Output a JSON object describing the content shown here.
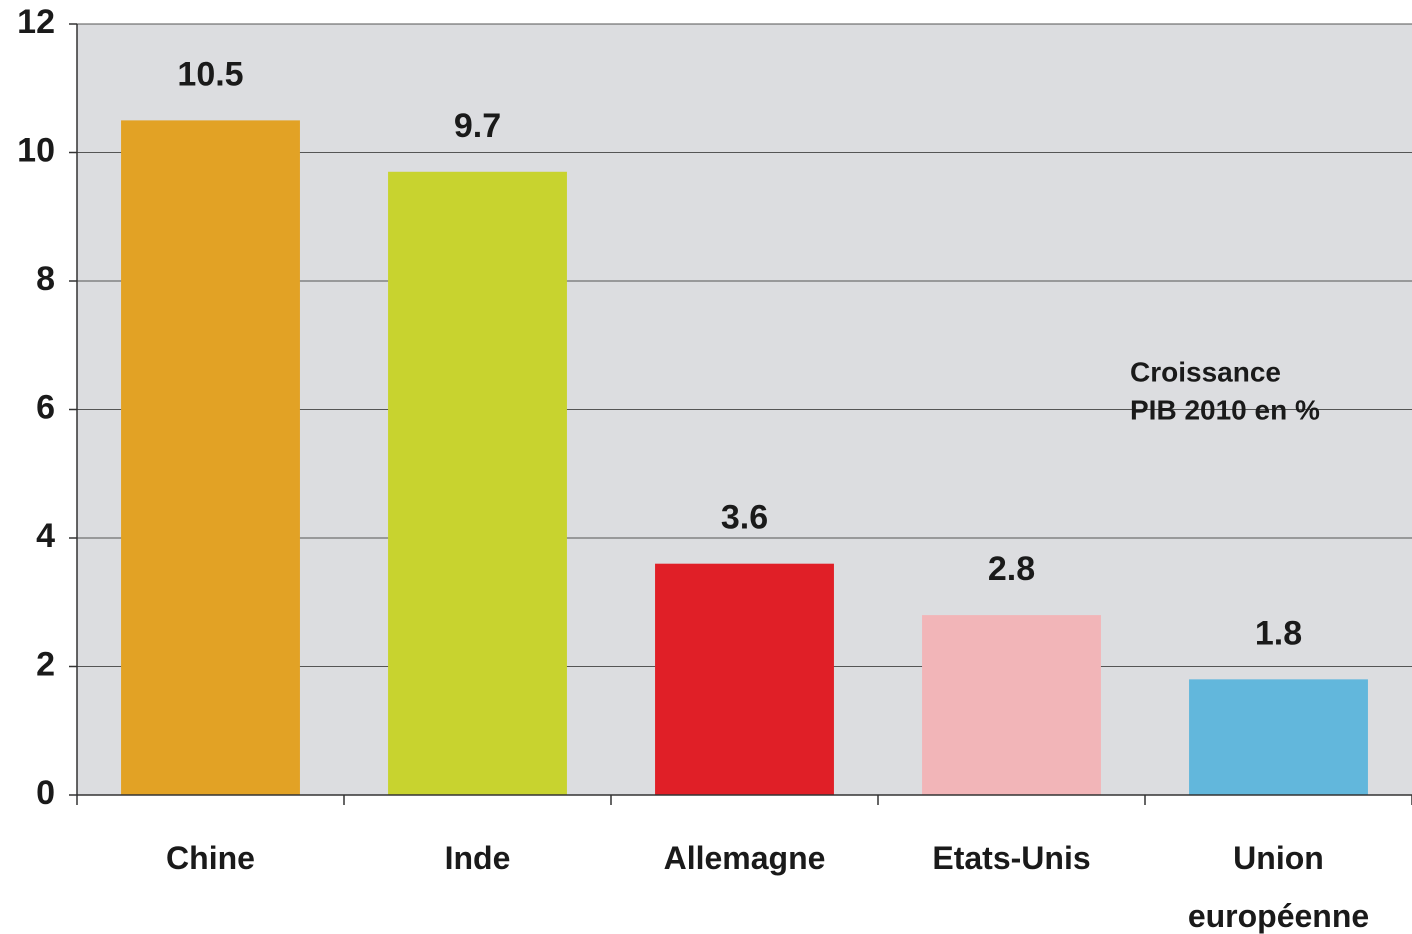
{
  "chart_data": {
    "type": "bar",
    "categories": [
      "Chine",
      "Inde",
      "Allemagne",
      "Etats-Unis",
      "Union européenne"
    ],
    "values": [
      10.5,
      9.7,
      3.6,
      2.8,
      1.8
    ],
    "colors": [
      "#e2a225",
      "#c8d32f",
      "#e01f27",
      "#f2b5b8",
      "#62b7dc"
    ],
    "annotation": [
      "Croissance",
      "PIB 2010 en %"
    ],
    "ylim": [
      0,
      12
    ],
    "yticks": [
      0,
      2,
      4,
      6,
      8,
      10,
      12
    ],
    "grid": true
  }
}
